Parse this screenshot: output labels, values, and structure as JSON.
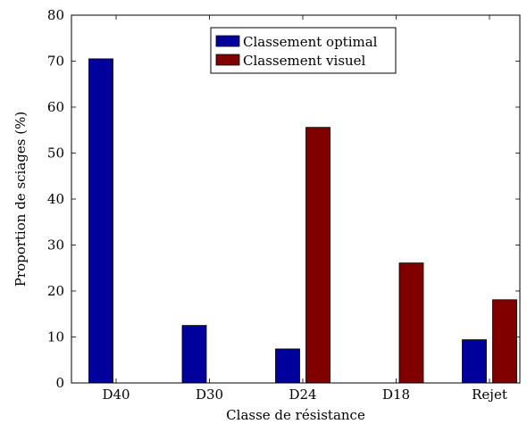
{
  "chart_data": {
    "type": "bar",
    "title": "",
    "xlabel": "Classe de résistance",
    "ylabel": "Proportion de sciages (%)",
    "categories": [
      "D40",
      "D30",
      "D24",
      "D18",
      "Rejet"
    ],
    "ylim": [
      0,
      80
    ],
    "yticks": [
      0,
      10,
      20,
      30,
      40,
      50,
      60,
      70,
      80
    ],
    "grid": false,
    "legend_position": "top-center",
    "series": [
      {
        "name": "Classement optimal",
        "color": "#00009c",
        "values": [
          70.5,
          12.5,
          7.4,
          0,
          9.4
        ]
      },
      {
        "name": "Classement visuel",
        "color": "#800000",
        "values": [
          0,
          0,
          55.6,
          26.1,
          18.1
        ]
      }
    ]
  }
}
